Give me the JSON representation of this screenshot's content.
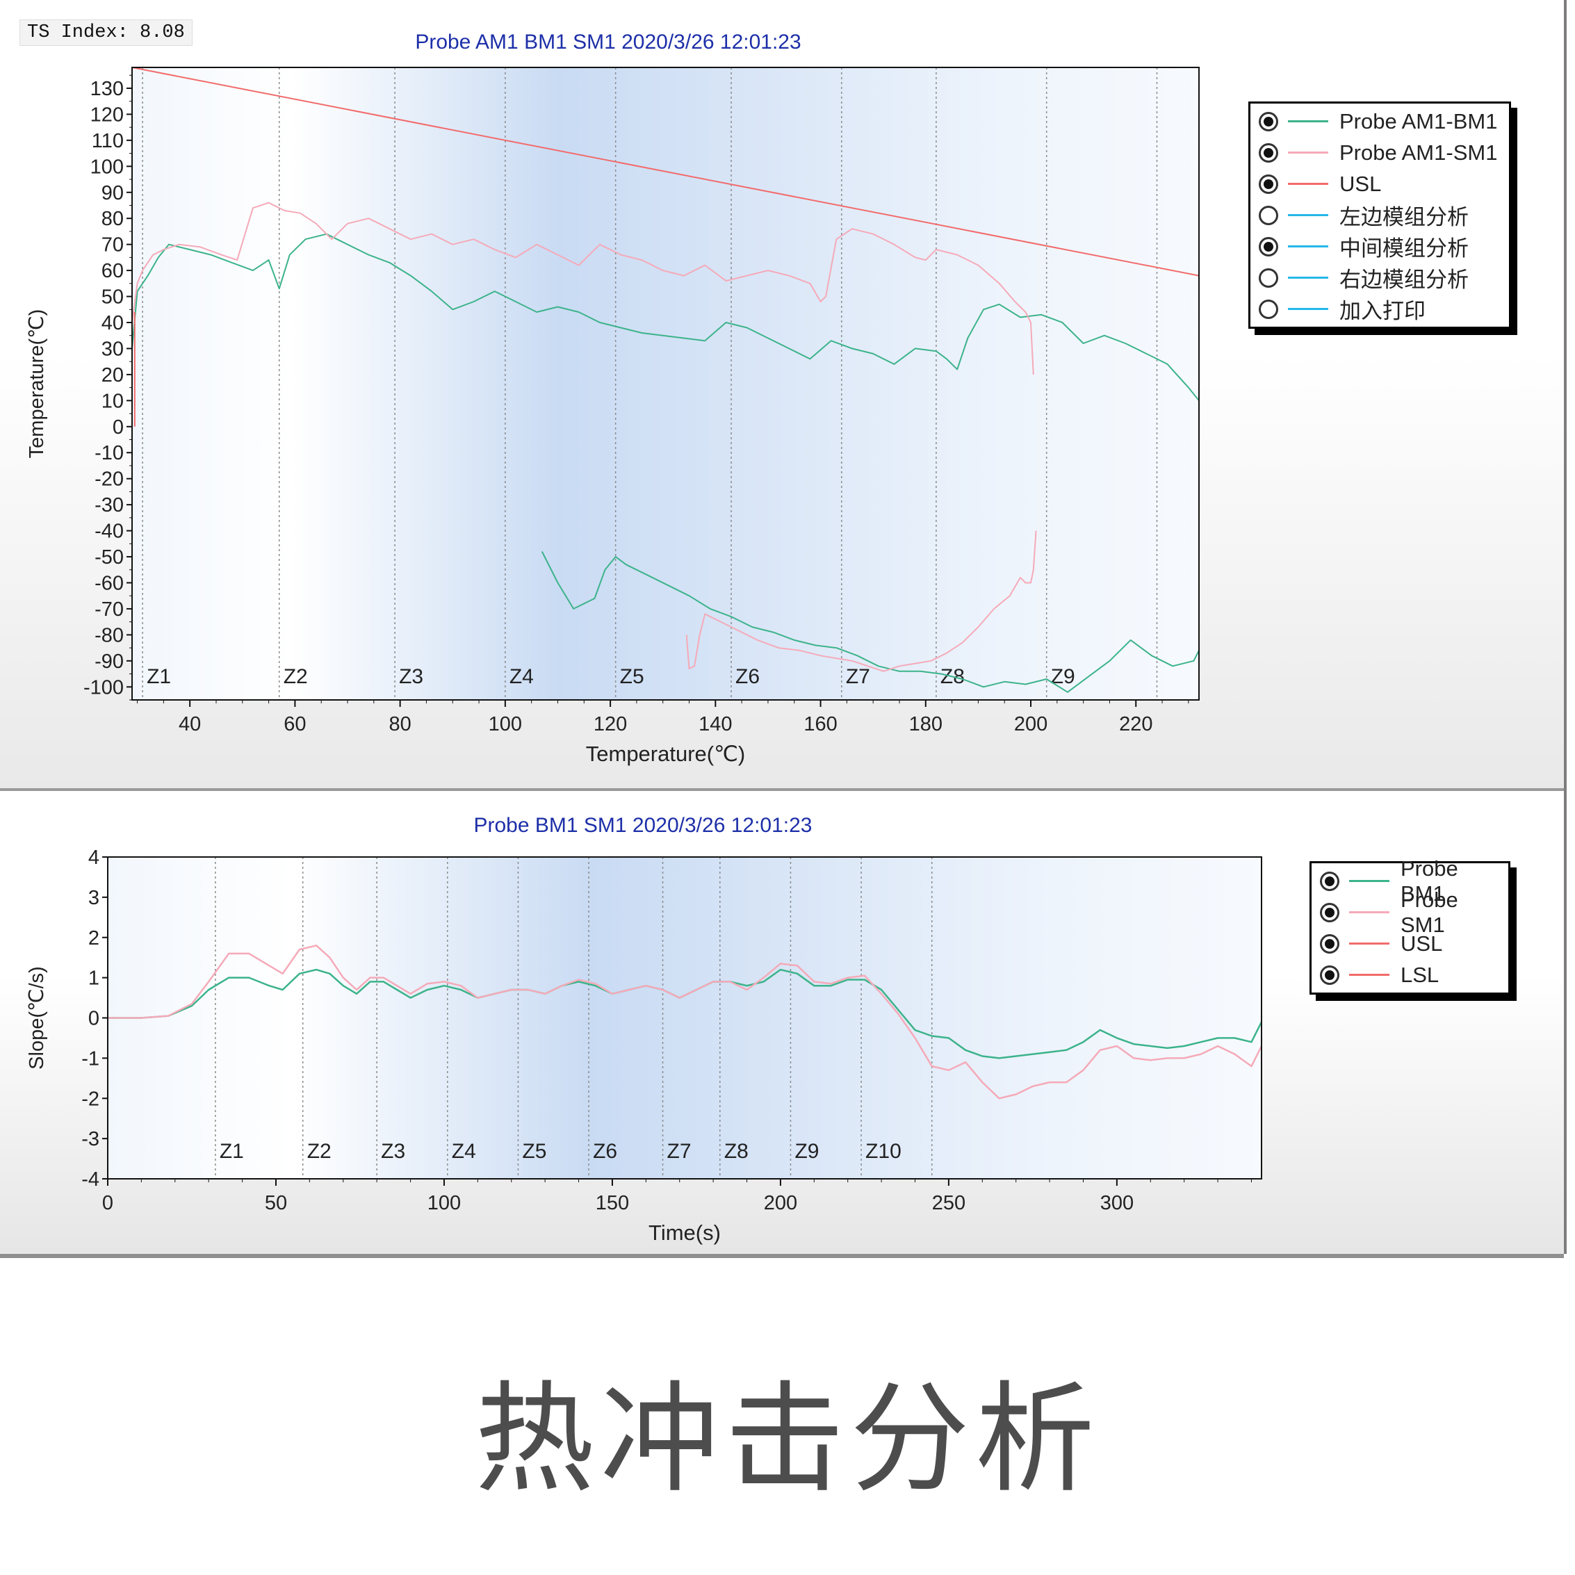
{
  "window": {
    "ts_index": "TS Index: 8.08"
  },
  "caption": "热冲击分析",
  "legend_top": {
    "items": [
      {
        "label": "Probe AM1-BM1",
        "checked": true,
        "color": "#3cb38a"
      },
      {
        "label": "Probe AM1-SM1",
        "checked": true,
        "color": "#f5aab8"
      },
      {
        "label": "USL",
        "checked": true,
        "color": "#f26b6b"
      },
      {
        "label": "左边模组分析",
        "checked": false,
        "color": "#25b8e8"
      },
      {
        "label": "中间模组分析",
        "checked": true,
        "color": "#25b8e8"
      },
      {
        "label": "右边模组分析",
        "checked": false,
        "color": "#25b8e8"
      },
      {
        "label": "加入打印",
        "checked": false,
        "color": "#25b8e8"
      }
    ]
  },
  "legend_bottom": {
    "items": [
      {
        "label": "Probe BM1",
        "checked": true,
        "color": "#3cb38a"
      },
      {
        "label": "Probe SM1",
        "checked": true,
        "color": "#f5aab8"
      },
      {
        "label": "USL",
        "checked": true,
        "color": "#f26b6b"
      },
      {
        "label": "LSL",
        "checked": true,
        "color": "#f26b6b"
      }
    ]
  },
  "chart_data": [
    {
      "type": "line",
      "title": "Probe AM1 BM1 SM1  2020/3/26 12:01:23",
      "xlabel": "Temperature(℃)",
      "ylabel": "Temperature(℃)",
      "xlim": [
        29,
        232
      ],
      "ylim": [
        -105,
        138
      ],
      "xticks": [
        40,
        60,
        80,
        100,
        120,
        140,
        160,
        180,
        200,
        220
      ],
      "yticks": [
        130,
        120,
        110,
        100,
        90,
        80,
        70,
        60,
        50,
        40,
        30,
        20,
        10,
        0,
        -10,
        -20,
        -30,
        -40,
        -50,
        -60,
        -70,
        -80,
        -90,
        -100
      ],
      "zones": [
        {
          "label": "Z1",
          "x": 31
        },
        {
          "label": "Z2",
          "x": 57
        },
        {
          "label": "Z3",
          "x": 79
        },
        {
          "label": "Z4",
          "x": 100
        },
        {
          "label": "Z5",
          "x": 121
        },
        {
          "label": "Z6",
          "x": 143
        },
        {
          "label": "Z7",
          "x": 164
        },
        {
          "label": "Z8",
          "x": 182
        },
        {
          "label": "Z9",
          "x": 203
        },
        {
          "label": "",
          "x": 224
        }
      ],
      "series": [
        {
          "name": "Probe AM1-BM1",
          "color": "#3cb38a",
          "x": [
            29,
            30,
            32,
            34,
            36,
            40,
            44,
            48,
            52,
            55,
            57,
            59,
            62,
            66,
            70,
            74,
            78,
            82,
            86,
            90,
            94,
            98,
            102,
            106,
            110,
            114,
            118,
            122,
            126,
            130,
            134,
            138,
            142,
            146,
            150,
            154,
            158,
            162,
            166,
            170,
            174,
            178,
            182,
            184,
            186,
            188,
            191,
            194,
            198,
            202,
            206,
            210,
            214,
            218,
            222,
            226,
            230,
            232
          ],
          "values": [
            30,
            52,
            58,
            65,
            70,
            68,
            66,
            63,
            60,
            64,
            53,
            66,
            72,
            74,
            70,
            66,
            63,
            58,
            52,
            45,
            48,
            52,
            48,
            44,
            46,
            44,
            40,
            38,
            36,
            35,
            34,
            33,
            40,
            38,
            34,
            30,
            26,
            33,
            30,
            28,
            24,
            30,
            29,
            26,
            22,
            34,
            45,
            47,
            42,
            43,
            40,
            32,
            35,
            32,
            28,
            24,
            15,
            10
          ]
        },
        {
          "name": "Probe AM1-BM1",
          "color": "#3cb38a",
          "x": [
            107,
            110,
            113,
            115,
            117,
            119,
            121,
            123,
            127,
            131,
            135,
            139,
            143,
            147,
            151,
            155,
            159,
            163,
            167,
            171,
            175,
            179,
            183,
            187,
            191,
            195,
            199,
            203,
            207,
            211,
            215,
            219,
            223,
            227,
            231,
            232
          ],
          "values": [
            -48,
            -60,
            -70,
            -68,
            -66,
            -55,
            -50,
            -53,
            -57,
            -61,
            -65,
            -70,
            -73,
            -77,
            -79,
            -82,
            -84,
            -85,
            -88,
            -92,
            -94,
            -94,
            -95,
            -97,
            -100,
            -98,
            -99,
            -97,
            -102,
            -96,
            -90,
            -82,
            -88,
            -92,
            -90,
            -86
          ]
        },
        {
          "name": "Probe AM1-SM1",
          "color": "#f5aab8",
          "x": [
            29,
            30,
            31,
            33,
            35,
            38,
            42,
            46,
            49,
            52,
            55,
            58,
            61,
            64,
            67,
            70,
            74,
            78,
            82,
            86,
            90,
            94,
            98,
            102,
            106,
            110,
            114,
            118,
            122,
            126,
            130,
            134,
            138,
            142,
            146,
            150,
            154,
            158,
            160,
            161,
            163,
            166,
            170,
            174,
            178,
            180,
            182,
            186,
            190,
            194,
            197,
            199,
            200,
            200.5
          ],
          "values": [
            40,
            55,
            60,
            66,
            68,
            70,
            69,
            66,
            64,
            84,
            86,
            83,
            82,
            78,
            72,
            78,
            80,
            76,
            72,
            74,
            70,
            72,
            68,
            65,
            70,
            66,
            62,
            70,
            66,
            64,
            60,
            58,
            62,
            56,
            58,
            60,
            58,
            55,
            48,
            50,
            72,
            76,
            74,
            70,
            65,
            64,
            68,
            66,
            62,
            55,
            48,
            44,
            40,
            20
          ]
        },
        {
          "name": "Probe AM1-SM1",
          "color": "#f5aab8",
          "x": [
            201,
            200.5,
            200,
            199,
            198,
            196,
            193,
            190,
            187,
            184,
            181,
            178,
            175,
            172,
            169,
            166,
            163,
            160,
            156,
            152,
            148,
            144,
            142,
            140,
            138,
            137,
            136,
            135,
            134.5
          ],
          "values": [
            -40,
            -55,
            -60,
            -60,
            -58,
            -65,
            -70,
            -77,
            -83,
            -87,
            -90,
            -91,
            -92,
            -94,
            -92,
            -90,
            -89,
            -88,
            -86,
            -85,
            -82,
            -78,
            -76,
            -74,
            -72,
            -80,
            -92,
            -93,
            -80
          ]
        },
        {
          "name": "USL",
          "color": "#f26b6b",
          "x": [
            29,
            232
          ],
          "values": [
            138,
            58
          ]
        },
        {
          "name": "USL",
          "color": "#f26b6b",
          "x": [
            29.5,
            29.5
          ],
          "values": [
            0,
            44
          ]
        }
      ]
    },
    {
      "type": "line",
      "title": "Probe BM1 SM1  2020/3/26 12:01:23",
      "xlabel": "Time(s)",
      "ylabel": "Slope(℃/s)",
      "xlim": [
        0,
        343
      ],
      "ylim": [
        -4,
        4
      ],
      "xticks": [
        0,
        50,
        100,
        150,
        200,
        250,
        300
      ],
      "yticks": [
        4,
        3,
        2,
        1,
        0,
        -1,
        -2,
        -3,
        -4
      ],
      "zones": [
        {
          "label": "Z1",
          "x": 32
        },
        {
          "label": "Z2",
          "x": 58
        },
        {
          "label": "Z3",
          "x": 80
        },
        {
          "label": "Z4",
          "x": 101
        },
        {
          "label": "Z5",
          "x": 122
        },
        {
          "label": "Z6",
          "x": 143
        },
        {
          "label": "Z7",
          "x": 165
        },
        {
          "label": "Z8",
          "x": 182
        },
        {
          "label": "Z9",
          "x": 203
        },
        {
          "label": "Z10",
          "x": 224
        },
        {
          "label": "",
          "x": 245
        }
      ],
      "series": [
        {
          "name": "Probe BM1",
          "color": "#3cb38a",
          "x": [
            0,
            10,
            18,
            25,
            30,
            36,
            42,
            48,
            52,
            57,
            62,
            66,
            70,
            74,
            78,
            82,
            86,
            90,
            95,
            100,
            105,
            110,
            115,
            120,
            125,
            130,
            135,
            140,
            145,
            150,
            155,
            160,
            165,
            170,
            175,
            180,
            185,
            190,
            195,
            200,
            205,
            210,
            215,
            220,
            225,
            230,
            235,
            240,
            245,
            250,
            255,
            260,
            265,
            270,
            275,
            280,
            285,
            290,
            295,
            300,
            305,
            310,
            315,
            320,
            325,
            330,
            335,
            340,
            343
          ],
          "values": [
            0,
            0,
            0.05,
            0.3,
            0.7,
            1.0,
            1.0,
            0.8,
            0.7,
            1.1,
            1.2,
            1.1,
            0.8,
            0.6,
            0.9,
            0.9,
            0.7,
            0.5,
            0.7,
            0.8,
            0.7,
            0.5,
            0.6,
            0.7,
            0.7,
            0.6,
            0.8,
            0.9,
            0.8,
            0.6,
            0.7,
            0.8,
            0.7,
            0.5,
            0.7,
            0.9,
            0.9,
            0.8,
            0.9,
            1.2,
            1.1,
            0.8,
            0.8,
            0.95,
            0.95,
            0.7,
            0.2,
            -0.3,
            -0.45,
            -0.5,
            -0.8,
            -0.95,
            -1.0,
            -0.95,
            -0.9,
            -0.85,
            -0.8,
            -0.6,
            -0.3,
            -0.5,
            -0.65,
            -0.7,
            -0.75,
            -0.7,
            -0.6,
            -0.5,
            -0.5,
            -0.6,
            -0.1
          ]
        },
        {
          "name": "Probe SM1",
          "color": "#f5aab8",
          "x": [
            0,
            10,
            18,
            25,
            30,
            36,
            42,
            48,
            52,
            57,
            62,
            66,
            70,
            74,
            78,
            82,
            86,
            90,
            95,
            100,
            105,
            110,
            115,
            120,
            125,
            130,
            135,
            140,
            145,
            150,
            155,
            160,
            165,
            170,
            175,
            180,
            185,
            190,
            195,
            200,
            205,
            210,
            215,
            220,
            225,
            230,
            235,
            240,
            245,
            250,
            255,
            260,
            265,
            270,
            275,
            280,
            285,
            290,
            295,
            300,
            305,
            310,
            315,
            320,
            325,
            330,
            335,
            340,
            343
          ],
          "values": [
            0,
            0,
            0.05,
            0.35,
            0.9,
            1.6,
            1.6,
            1.3,
            1.1,
            1.7,
            1.8,
            1.5,
            1.0,
            0.7,
            1.0,
            1.0,
            0.8,
            0.6,
            0.85,
            0.9,
            0.8,
            0.5,
            0.6,
            0.7,
            0.7,
            0.6,
            0.8,
            0.95,
            0.85,
            0.6,
            0.7,
            0.8,
            0.7,
            0.5,
            0.7,
            0.9,
            0.9,
            0.7,
            1.0,
            1.35,
            1.3,
            0.9,
            0.85,
            1.0,
            1.05,
            0.6,
            0.1,
            -0.5,
            -1.2,
            -1.3,
            -1.1,
            -1.6,
            -2.0,
            -1.9,
            -1.7,
            -1.6,
            -1.6,
            -1.3,
            -0.8,
            -0.7,
            -1.0,
            -1.05,
            -1.0,
            -1.0,
            -0.9,
            -0.7,
            -0.9,
            -1.2,
            -0.7
          ]
        }
      ]
    }
  ]
}
